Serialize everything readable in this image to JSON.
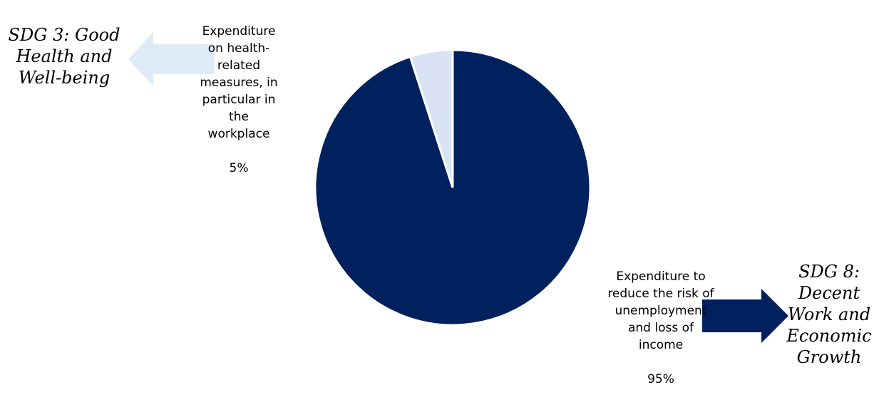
{
  "chart_data": {
    "type": "pie",
    "start_angle_deg": 0,
    "slices": [
      {
        "label": "Expenditure to reduce the risk of unemployment and loss of income",
        "percent_label": "95%",
        "value": 95,
        "color": "#00215e"
      },
      {
        "label": "Expenditure on health-related measures, in particular in the workplace",
        "percent_label": "5%",
        "value": 5,
        "color": "#dae3f3"
      }
    ]
  },
  "annotations": {
    "sdg3": {
      "text": "SDG 3: Good Health and Well-being",
      "arrow_color": "#deebf7",
      "arrow_direction": "left"
    },
    "sdg8": {
      "text": "SDG 8: Decent Work and Economic Growth",
      "arrow_color": "#00215e",
      "arrow_direction": "right"
    }
  }
}
